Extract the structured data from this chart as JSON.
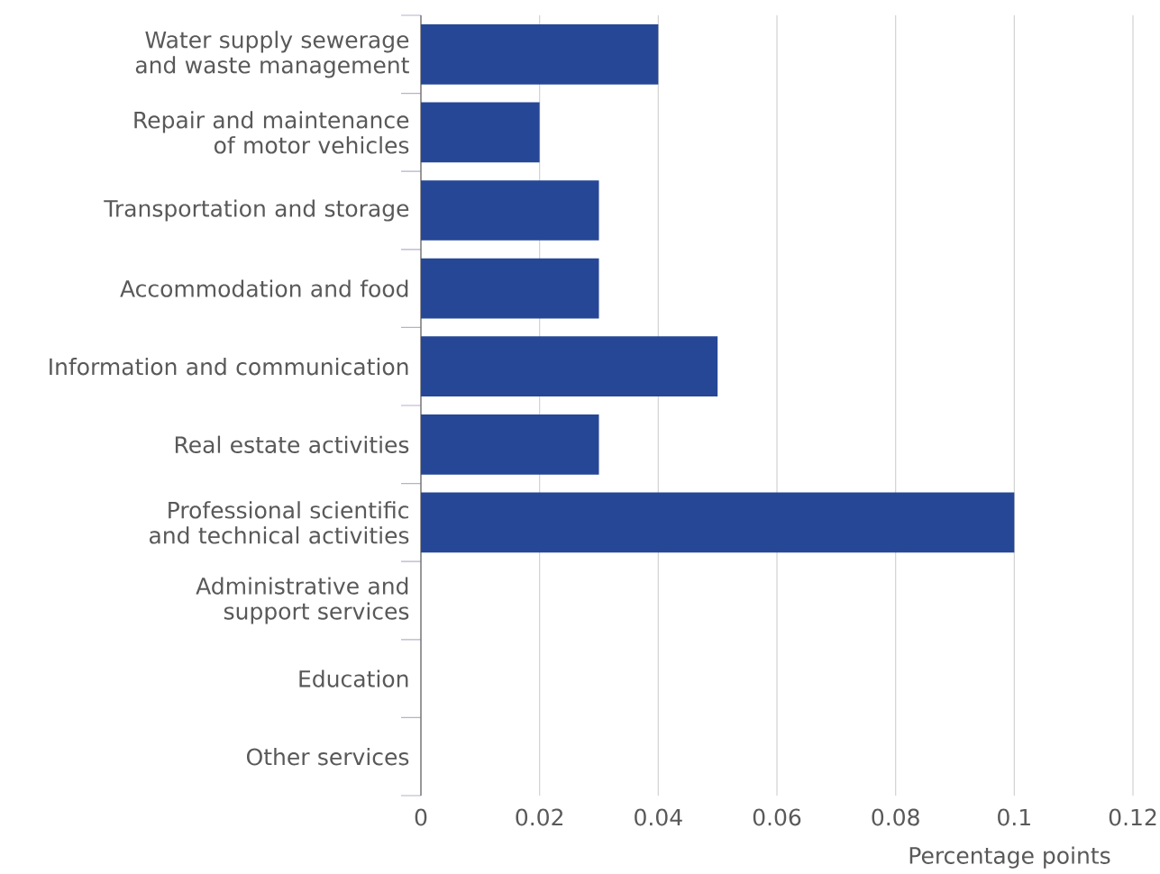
{
  "chart_data": {
    "type": "bar",
    "orientation": "horizontal",
    "xlabel": "Percentage points",
    "categories": [
      "Water supply sewerage and waste management",
      "Repair and maintenance of motor vehicles",
      "Transportation and storage",
      "Accommodation and food",
      "Information and communication",
      "Real estate activities",
      "Professional scientific and technical activities",
      "Administrative and support services",
      "Education",
      "Other services"
    ],
    "values": [
      0.04,
      0.02,
      0.03,
      0.03,
      0.05,
      0.03,
      0.1,
      0,
      0,
      0
    ],
    "color": "#264796",
    "xlim": [
      0,
      0.12
    ],
    "xticks": [
      0,
      0.02,
      0.04,
      0.06,
      0.08,
      0.1,
      0.12
    ],
    "grid": "x"
  }
}
